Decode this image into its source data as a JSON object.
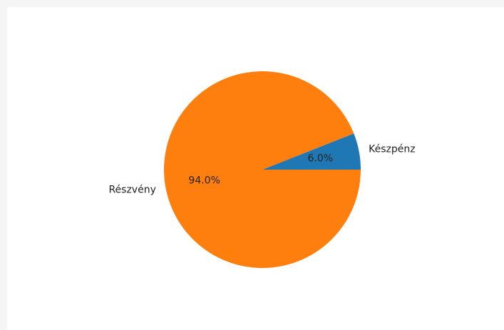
{
  "chart_data": {
    "type": "pie",
    "categories": [
      "Készpénz",
      "Részvény"
    ],
    "values": [
      6.0,
      94.0
    ],
    "percent_labels": [
      "6.0%",
      "94.0%"
    ],
    "colors": [
      "#1f77b4",
      "#ff7f0e"
    ],
    "start_angle_deg": 0,
    "direction": "counterclockwise",
    "title": "",
    "legend": "none"
  }
}
